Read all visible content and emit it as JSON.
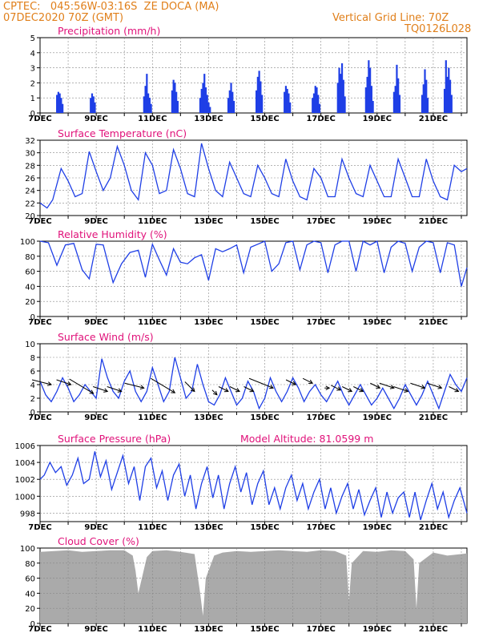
{
  "header": {
    "line1_left": "CPTEC:   045:56W-03:16S  ZE DOCA (MA)",
    "line2_left": "07DEC2020 70Z (GMT)",
    "line1_right": "Vertical Grid Line: 70Z",
    "line2_right": "TQ0126L028"
  },
  "colors": {
    "header": "#e07f1a",
    "title": "#e0127a",
    "series": "#1f3fe6",
    "bars": "#1f3fe6",
    "cloud": "#aaaaaa",
    "axis": "#000000",
    "grid": "#888888"
  },
  "x_axis": {
    "ticks": [
      {
        "day": 0,
        "label": "7DEC"
      },
      {
        "day": 2,
        "label": "9DEC"
      },
      {
        "day": 4,
        "label": "11DEC"
      },
      {
        "day": 6,
        "label": "13DEC"
      },
      {
        "day": 8,
        "label": "15DEC"
      },
      {
        "day": 10,
        "label": "17DEC"
      },
      {
        "day": 12,
        "label": "19DEC"
      },
      {
        "day": 14,
        "label": "21DEC"
      }
    ],
    "range_days": [
      0,
      15.2
    ]
  },
  "chart_data": [
    {
      "id": "precip",
      "type": "bar",
      "title": "Precipitation  (mm/h)",
      "ylim": [
        0,
        5
      ],
      "yticks": [
        0,
        1,
        2,
        3,
        4,
        5
      ],
      "x": [
        0.6,
        0.65,
        0.7,
        0.75,
        0.8,
        1.8,
        1.85,
        1.9,
        1.95,
        3.7,
        3.75,
        3.8,
        3.85,
        3.9,
        3.95,
        4.7,
        4.75,
        4.8,
        4.85,
        4.9,
        5.7,
        5.75,
        5.8,
        5.85,
        5.9,
        5.95,
        6.0,
        6.05,
        6.7,
        6.75,
        6.8,
        6.85,
        6.9,
        7.7,
        7.75,
        7.8,
        7.85,
        7.9,
        8.7,
        8.75,
        8.8,
        8.85,
        8.9,
        9.7,
        9.75,
        9.8,
        9.85,
        9.9,
        9.95,
        10.6,
        10.65,
        10.7,
        10.75,
        10.8,
        10.85,
        11.6,
        11.65,
        11.7,
        11.75,
        11.8,
        11.85,
        12.6,
        12.65,
        12.7,
        12.75,
        12.8,
        13.6,
        13.65,
        13.7,
        13.75,
        13.8,
        14.4,
        14.45,
        14.5,
        14.55,
        14.6,
        14.65
      ],
      "values": [
        1.2,
        1.4,
        1.3,
        1.0,
        0.6,
        1.0,
        1.3,
        1.1,
        0.7,
        1.1,
        1.8,
        2.6,
        1.3,
        1.0,
        0.6,
        1.5,
        2.2,
        2.0,
        1.4,
        0.8,
        1.0,
        1.6,
        2.0,
        2.6,
        1.7,
        1.2,
        0.7,
        0.4,
        1.0,
        1.5,
        2.0,
        1.4,
        0.8,
        1.5,
        2.4,
        2.8,
        2.1,
        1.2,
        1.4,
        1.8,
        1.6,
        1.3,
        0.7,
        1.0,
        1.3,
        1.8,
        1.7,
        1.2,
        0.6,
        2.0,
        3.0,
        2.6,
        3.3,
        2.2,
        1.1,
        1.7,
        2.4,
        3.5,
        3.0,
        1.8,
        0.8,
        1.4,
        1.8,
        3.2,
        2.3,
        1.2,
        1.2,
        1.9,
        2.9,
        2.2,
        1.0,
        1.6,
        3.5,
        2.4,
        3.0,
        2.2,
        1.2
      ]
    },
    {
      "id": "temp",
      "type": "line",
      "title": "Surface Temperature (nC)",
      "ylim": [
        20,
        32
      ],
      "yticks": [
        20,
        22,
        24,
        26,
        28,
        30,
        32
      ],
      "x": [
        0,
        0.25,
        0.45,
        0.75,
        1.0,
        1.25,
        1.5,
        1.75,
        2.0,
        2.25,
        2.5,
        2.75,
        3.0,
        3.25,
        3.5,
        3.75,
        4.0,
        4.25,
        4.5,
        4.75,
        5.0,
        5.25,
        5.5,
        5.75,
        6.0,
        6.25,
        6.5,
        6.75,
        7.0,
        7.25,
        7.5,
        7.75,
        8.0,
        8.25,
        8.5,
        8.75,
        9.0,
        9.25,
        9.5,
        9.75,
        10.0,
        10.25,
        10.5,
        10.75,
        11.0,
        11.25,
        11.5,
        11.75,
        12.0,
        12.25,
        12.5,
        12.75,
        13.0,
        13.25,
        13.5,
        13.75,
        14.0,
        14.25,
        14.5,
        14.75,
        15.0,
        15.2
      ],
      "values": [
        22,
        21.2,
        22.5,
        27.5,
        25.5,
        23,
        23.5,
        30.2,
        27,
        24,
        26,
        31,
        28,
        24,
        22.5,
        30,
        28,
        23.5,
        24,
        30.5,
        27.5,
        23.5,
        23,
        31.5,
        27.5,
        24,
        23,
        28.5,
        26,
        23.5,
        23,
        28,
        26,
        23.5,
        23,
        29,
        25.5,
        23,
        22.5,
        27.5,
        26,
        23,
        23,
        29,
        26,
        23.5,
        23,
        28,
        25.5,
        23,
        23,
        29,
        26,
        23,
        23,
        29,
        25.5,
        23,
        22.5,
        28,
        27,
        27.5
      ]
    },
    {
      "id": "rh",
      "type": "line",
      "title": "Relative Humidity (%)",
      "ylim": [
        0,
        100
      ],
      "yticks": [
        0,
        20,
        40,
        60,
        80,
        100
      ],
      "x": [
        0,
        0.3,
        0.6,
        0.9,
        1.2,
        1.5,
        1.75,
        2.0,
        2.25,
        2.6,
        2.9,
        3.2,
        3.5,
        3.75,
        4.0,
        4.25,
        4.5,
        4.75,
        5.0,
        5.25,
        5.5,
        5.75,
        6.0,
        6.25,
        6.5,
        6.75,
        7.0,
        7.25,
        7.5,
        7.75,
        8.0,
        8.25,
        8.5,
        8.75,
        9.0,
        9.25,
        9.5,
        9.75,
        10.0,
        10.25,
        10.5,
        10.75,
        11.0,
        11.25,
        11.5,
        11.75,
        12.0,
        12.25,
        12.5,
        12.75,
        13.0,
        13.25,
        13.5,
        13.75,
        14.0,
        14.25,
        14.5,
        14.75,
        15.0,
        15.2
      ],
      "values": [
        100,
        98,
        68,
        95,
        97,
        62,
        50,
        96,
        95,
        45,
        70,
        85,
        88,
        52,
        96,
        75,
        55,
        90,
        72,
        70,
        78,
        82,
        48,
        90,
        86,
        90,
        95,
        58,
        92,
        96,
        100,
        60,
        70,
        98,
        100,
        62,
        95,
        100,
        98,
        58,
        95,
        100,
        100,
        60,
        100,
        95,
        100,
        58,
        92,
        100,
        97,
        60,
        92,
        100,
        98,
        58,
        98,
        95,
        40,
        65
      ]
    },
    {
      "id": "wind",
      "type": "line",
      "title": "Surface Wind (m/s)",
      "ylim": [
        0,
        10
      ],
      "yticks": [
        0,
        2,
        4,
        6,
        8,
        10
      ],
      "x": [
        0,
        0.2,
        0.4,
        0.6,
        0.8,
        1.0,
        1.2,
        1.4,
        1.6,
        1.8,
        2.0,
        2.2,
        2.4,
        2.6,
        2.8,
        3.0,
        3.2,
        3.4,
        3.6,
        3.8,
        4.0,
        4.2,
        4.4,
        4.6,
        4.8,
        5.0,
        5.2,
        5.4,
        5.6,
        5.8,
        6.0,
        6.2,
        6.4,
        6.6,
        6.8,
        7.0,
        7.2,
        7.4,
        7.6,
        7.8,
        8.0,
        8.2,
        8.4,
        8.6,
        8.8,
        9.0,
        9.2,
        9.4,
        9.6,
        9.8,
        10.0,
        10.2,
        10.4,
        10.6,
        10.8,
        11.0,
        11.2,
        11.4,
        11.6,
        11.8,
        12.0,
        12.2,
        12.4,
        12.6,
        12.8,
        13.0,
        13.2,
        13.4,
        13.6,
        13.8,
        14.0,
        14.2,
        14.4,
        14.6,
        14.8,
        15.0,
        15.2
      ],
      "values": [
        4.5,
        2.5,
        1.5,
        3,
        5,
        3.5,
        1.5,
        2.5,
        4,
        3,
        2,
        7.8,
        5,
        3,
        2,
        4.5,
        6,
        3,
        1.5,
        3,
        6.5,
        4,
        1.5,
        3,
        8,
        5,
        2,
        3,
        7,
        4,
        1.5,
        1,
        2.5,
        5,
        3,
        1,
        2,
        4.5,
        3,
        0.5,
        2,
        5,
        3,
        1.5,
        3,
        5,
        3.5,
        1.5,
        3,
        4,
        2.5,
        1.5,
        3,
        4.5,
        2.5,
        1,
        2.5,
        4,
        2.5,
        1,
        2,
        3.5,
        2,
        0.5,
        2,
        4,
        2.5,
        1,
        2.5,
        4.5,
        2.5,
        0.5,
        3,
        5.5,
        4,
        3,
        5
      ]
    },
    {
      "id": "wind_barbs",
      "type": "scatter",
      "note_free": true,
      "x": [
        0.4,
        1.1,
        1.9,
        2.4,
        2.9,
        3.7,
        4.8,
        5.5,
        6.3,
        6.7,
        7.1,
        7.6,
        8.3,
        9.1,
        9.7,
        10.3,
        10.7,
        11.1,
        11.5,
        12.1,
        12.6,
        13.1,
        13.7,
        14.3,
        14.9
      ],
      "u": [
        -4,
        -3,
        -5,
        -3,
        -3,
        -4,
        -5,
        -2,
        -1,
        -2,
        -2,
        -2,
        -5,
        -2,
        -2,
        -1,
        -2,
        -2,
        -2,
        -2,
        -3,
        -3,
        -3,
        -3,
        -2
      ],
      "v": [
        1,
        1,
        3,
        1,
        1,
        1,
        3,
        2,
        1,
        1,
        1,
        1,
        2,
        1,
        1,
        0,
        1,
        1,
        1,
        1,
        1,
        1,
        1,
        1,
        1
      ],
      "y": [
        4,
        4,
        2.7,
        3,
        3,
        3.5,
        2.8,
        3,
        2.5,
        3,
        3,
        3,
        3.5,
        4,
        4.2,
        3.5,
        3.2,
        3,
        3,
        3.5,
        3.5,
        3,
        3.5,
        3.5,
        3
      ]
    },
    {
      "id": "pres",
      "type": "line",
      "title": "Surface Pressure (hPa)",
      "subtitle": "Model Altitude: 81.0599 m",
      "ylim": [
        997,
        1006
      ],
      "yticks": [
        998,
        1000,
        1002,
        1004,
        1006
      ],
      "x": [
        0,
        0.15,
        0.35,
        0.55,
        0.75,
        0.95,
        1.15,
        1.35,
        1.55,
        1.75,
        1.95,
        2.15,
        2.35,
        2.55,
        2.75,
        2.95,
        3.15,
        3.35,
        3.55,
        3.75,
        3.95,
        4.15,
        4.35,
        4.55,
        4.75,
        4.95,
        5.15,
        5.35,
        5.55,
        5.75,
        5.95,
        6.15,
        6.35,
        6.55,
        6.75,
        6.95,
        7.15,
        7.35,
        7.55,
        7.75,
        7.95,
        8.15,
        8.35,
        8.55,
        8.75,
        8.95,
        9.15,
        9.35,
        9.55,
        9.75,
        9.95,
        10.15,
        10.35,
        10.55,
        10.75,
        10.95,
        11.15,
        11.35,
        11.55,
        11.75,
        11.95,
        12.15,
        12.35,
        12.55,
        12.75,
        12.95,
        13.15,
        13.35,
        13.55,
        13.75,
        13.95,
        14.15,
        14.35,
        14.55,
        14.75,
        14.95,
        15.2
      ],
      "values": [
        1002,
        1002.5,
        1004,
        1002.8,
        1003.5,
        1001.3,
        1002.5,
        1004.5,
        1001.5,
        1002,
        1005.3,
        1002.3,
        1004.2,
        1000.8,
        1002.8,
        1004.8,
        1001.5,
        1003.5,
        999.5,
        1003.5,
        1004.5,
        1001,
        1003,
        999.5,
        1002.5,
        1003.8,
        1000,
        1002.5,
        998.5,
        1001.5,
        1003.5,
        999.8,
        1002.5,
        998.5,
        1001.5,
        1003.5,
        1000.5,
        1002.8,
        999,
        1001.5,
        1003,
        999,
        1001,
        998.5,
        1001,
        1002.5,
        999.5,
        1001.5,
        998.5,
        1000.5,
        1002,
        998.5,
        1001,
        998,
        1000,
        1001.5,
        998.5,
        1000.8,
        997.8,
        999.5,
        1001,
        997.5,
        1000.5,
        998,
        999.8,
        1000.5,
        997.5,
        1000.5,
        997.2,
        999.5,
        1001.5,
        998.5,
        1000.5,
        997.5,
        999.5,
        1001,
        998
      ]
    },
    {
      "id": "cloud",
      "type": "area",
      "title": "Cloud Cover (%)",
      "ylim": [
        0,
        100
      ],
      "yticks": [
        0,
        20,
        40,
        60,
        80,
        100
      ],
      "x": [
        0,
        0.5,
        1,
        1.5,
        2,
        2.5,
        3,
        3.3,
        3.4,
        3.5,
        3.8,
        4,
        4.5,
        5,
        5.5,
        5.7,
        5.8,
        5.9,
        6.2,
        6.5,
        7,
        7.5,
        8,
        8.5,
        9,
        9.5,
        10,
        10.5,
        10.9,
        11,
        11.1,
        11.5,
        12,
        12.5,
        13,
        13.3,
        13.4,
        13.5,
        14,
        14.5,
        15,
        15.2
      ],
      "values": [
        95,
        96,
        97,
        95,
        96,
        97,
        97,
        90,
        70,
        40,
        88,
        96,
        97,
        95,
        92,
        40,
        10,
        60,
        90,
        94,
        96,
        95,
        96,
        97,
        96,
        95,
        97,
        96,
        90,
        30,
        80,
        96,
        95,
        97,
        96,
        85,
        20,
        80,
        94,
        90,
        92,
        93
      ]
    }
  ]
}
